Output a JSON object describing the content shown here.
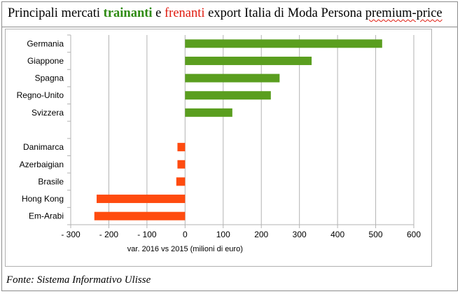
{
  "title": {
    "part1": "Principali mercati ",
    "part2": "trainanti",
    "part3": " e ",
    "part4": "frenanti",
    "part5": " export Italia di Moda Persona ",
    "part6": "premium-price"
  },
  "source": "Fonte: Sistema Informativo Ulisse",
  "colors": {
    "positive": "#5a9e1f",
    "negative": "#ff4b0f",
    "grid": "#b3b3b3"
  },
  "chart_data": {
    "type": "bar",
    "orientation": "horizontal",
    "categories": [
      "Germania",
      "Giappone",
      "Spagna",
      "Regno-Unito",
      "Svizzera",
      "",
      "Danimarca",
      "Azerbaigian",
      "Brasile",
      "Hong Kong",
      "Em-Arabi"
    ],
    "values": [
      517,
      332,
      248,
      225,
      124,
      null,
      -20,
      -20,
      -23,
      -232,
      -238
    ],
    "xlabel": "var. 2016 vs 2015 (milioni di euro)",
    "xlim": [
      -300,
      600
    ],
    "xticks": [
      -300,
      -200,
      -100,
      0,
      100,
      200,
      300,
      400,
      500,
      600
    ],
    "xtick_labels": [
      "- 300",
      "- 200",
      "- 100",
      "0",
      "100",
      "200",
      "300",
      "400",
      "500",
      "600"
    ],
    "grid": "vertical"
  }
}
